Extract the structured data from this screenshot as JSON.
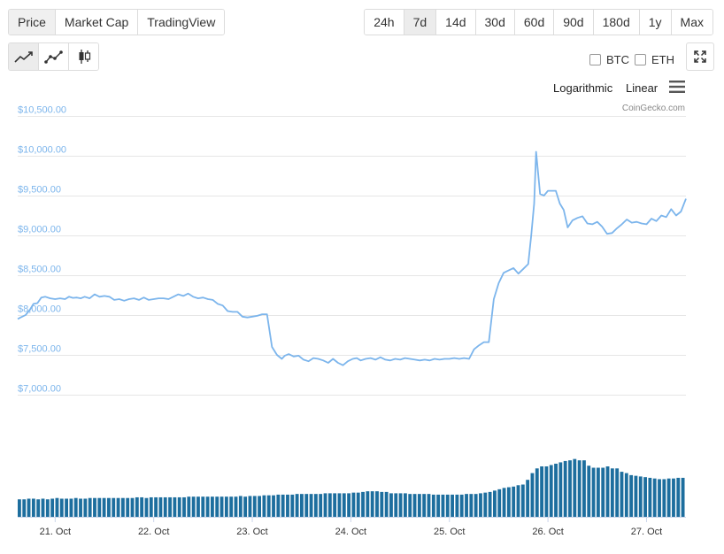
{
  "view_tabs": [
    {
      "label": "Price",
      "active": true
    },
    {
      "label": "Market Cap",
      "active": false
    },
    {
      "label": "TradingView",
      "active": false
    }
  ],
  "ranges": [
    {
      "label": "24h",
      "active": false
    },
    {
      "label": "7d",
      "active": true
    },
    {
      "label": "14d",
      "active": false
    },
    {
      "label": "30d",
      "active": false
    },
    {
      "label": "60d",
      "active": false
    },
    {
      "label": "90d",
      "active": false
    },
    {
      "label": "180d",
      "active": false
    },
    {
      "label": "1y",
      "active": false
    },
    {
      "label": "Max",
      "active": false
    }
  ],
  "chart_types": [
    {
      "icon": "line-chart-icon",
      "active": true
    },
    {
      "icon": "line-markers-chart-icon",
      "active": false
    },
    {
      "icon": "candlestick-chart-icon",
      "active": false
    }
  ],
  "compare": {
    "btc": "BTC",
    "eth": "ETH",
    "btc_checked": false,
    "eth_checked": false
  },
  "scale": {
    "log": "Logarithmic",
    "linear": "Linear"
  },
  "credit": "CoinGecko.com",
  "colors": {
    "line": "#7cb5ec",
    "volume": "#1d6e9e",
    "axis_text": "#7cb5ec",
    "grid": "#e6e6e6"
  },
  "chart_data": {
    "type": "line",
    "y_ticks": [
      "$10,500.00",
      "$10,000.00",
      "$9,500.00",
      "$9,000.00",
      "$8,500.00",
      "$8,000.00",
      "$7,500.00",
      "$7,000.00"
    ],
    "y_tick_values": [
      10500,
      10000,
      9500,
      9000,
      8500,
      8000,
      7500,
      7000
    ],
    "ylim": [
      7000,
      10500
    ],
    "x_ticks": [
      "21. Oct",
      "22. Oct",
      "23. Oct",
      "24. Oct",
      "25. Oct",
      "26. Oct",
      "27. Oct"
    ],
    "x_tick_days": [
      1,
      2,
      3,
      4,
      5,
      6,
      7
    ],
    "xlim_days": [
      0.62,
      7.4
    ],
    "x_unit": "Oct 20 + days",
    "price_series": {
      "days": [
        0.62,
        0.65,
        0.7,
        0.74,
        0.78,
        0.82,
        0.86,
        0.9,
        0.95,
        1.0,
        1.05,
        1.1,
        1.14,
        1.18,
        1.22,
        1.26,
        1.3,
        1.35,
        1.4,
        1.45,
        1.5,
        1.55,
        1.6,
        1.65,
        1.7,
        1.75,
        1.8,
        1.85,
        1.9,
        1.95,
        2.0,
        2.05,
        2.1,
        2.15,
        2.2,
        2.25,
        2.3,
        2.35,
        2.4,
        2.45,
        2.5,
        2.55,
        2.6,
        2.65,
        2.7,
        2.75,
        2.8,
        2.85,
        2.9,
        2.95,
        3.0,
        3.05,
        3.1,
        3.15,
        3.2,
        3.25,
        3.3,
        3.33,
        3.37,
        3.42,
        3.47,
        3.52,
        3.57,
        3.62,
        3.67,
        3.72,
        3.77,
        3.82,
        3.87,
        3.92,
        3.97,
        4.02,
        4.06,
        4.1,
        4.15,
        4.2,
        4.25,
        4.3,
        4.35,
        4.4,
        4.45,
        4.5,
        4.55,
        4.6,
        4.65,
        4.7,
        4.75,
        4.8,
        4.85,
        4.9,
        4.95,
        5.0,
        5.05,
        5.1,
        5.15,
        5.2,
        5.25,
        5.3,
        5.35,
        5.4,
        5.45,
        5.5,
        5.55,
        5.6,
        5.65,
        5.7,
        5.75,
        5.8,
        5.83,
        5.86,
        5.88,
        5.92,
        5.96,
        6.0,
        6.04,
        6.08,
        6.12,
        6.16,
        6.2,
        6.25,
        6.3,
        6.35,
        6.4,
        6.45,
        6.5,
        6.55,
        6.6,
        6.65,
        6.7,
        6.75,
        6.8,
        6.85,
        6.9,
        6.95,
        7.0,
        7.05,
        7.1,
        7.15,
        7.2,
        7.25,
        7.3,
        7.35,
        7.4
      ],
      "prices": [
        7950,
        7970,
        8000,
        8060,
        8140,
        8150,
        8220,
        8230,
        8210,
        8200,
        8210,
        8200,
        8230,
        8215,
        8220,
        8210,
        8230,
        8210,
        8260,
        8230,
        8240,
        8230,
        8190,
        8200,
        8180,
        8200,
        8210,
        8190,
        8220,
        8190,
        8200,
        8210,
        8210,
        8200,
        8230,
        8260,
        8240,
        8270,
        8230,
        8210,
        8220,
        8200,
        8190,
        8140,
        8120,
        8050,
        8040,
        8040,
        7980,
        7970,
        7980,
        7990,
        8010,
        8010,
        7600,
        7500,
        7450,
        7490,
        7510,
        7480,
        7490,
        7440,
        7420,
        7460,
        7450,
        7430,
        7400,
        7450,
        7400,
        7370,
        7420,
        7450,
        7460,
        7430,
        7450,
        7460,
        7440,
        7470,
        7440,
        7430,
        7450,
        7440,
        7460,
        7450,
        7440,
        7430,
        7440,
        7430,
        7450,
        7440,
        7450,
        7450,
        7460,
        7450,
        7460,
        7450,
        7570,
        7620,
        7660,
        7660,
        8200,
        8400,
        8530,
        8560,
        8590,
        8520,
        8580,
        8640,
        9000,
        9400,
        10050,
        9520,
        9500,
        9560,
        9560,
        9560,
        9400,
        9320,
        9100,
        9190,
        9220,
        9240,
        9150,
        9140,
        9170,
        9110,
        9020,
        9030,
        9090,
        9140,
        9200,
        9160,
        9170,
        9150,
        9140,
        9210,
        9180,
        9250,
        9230,
        9330,
        9250,
        9300,
        9460
      ]
    },
    "volume_bars": [
      0.26,
      0.26,
      0.27,
      0.27,
      0.26,
      0.27,
      0.26,
      0.27,
      0.28,
      0.27,
      0.27,
      0.27,
      0.28,
      0.27,
      0.27,
      0.28,
      0.28,
      0.28,
      0.28,
      0.28,
      0.28,
      0.28,
      0.28,
      0.28,
      0.28,
      0.29,
      0.29,
      0.28,
      0.29,
      0.29,
      0.29,
      0.29,
      0.29,
      0.29,
      0.29,
      0.29,
      0.3,
      0.3,
      0.3,
      0.3,
      0.3,
      0.3,
      0.3,
      0.3,
      0.3,
      0.3,
      0.3,
      0.31,
      0.3,
      0.31,
      0.31,
      0.31,
      0.32,
      0.32,
      0.32,
      0.33,
      0.33,
      0.33,
      0.33,
      0.34,
      0.34,
      0.34,
      0.34,
      0.34,
      0.34,
      0.35,
      0.35,
      0.35,
      0.35,
      0.35,
      0.35,
      0.36,
      0.36,
      0.37,
      0.38,
      0.38,
      0.38,
      0.37,
      0.37,
      0.35,
      0.35,
      0.35,
      0.35,
      0.34,
      0.34,
      0.34,
      0.34,
      0.34,
      0.33,
      0.33,
      0.33,
      0.33,
      0.33,
      0.33,
      0.33,
      0.34,
      0.34,
      0.34,
      0.35,
      0.36,
      0.37,
      0.39,
      0.41,
      0.43,
      0.44,
      0.45,
      0.47,
      0.48,
      0.55,
      0.65,
      0.72,
      0.75,
      0.75,
      0.77,
      0.79,
      0.81,
      0.83,
      0.84,
      0.86,
      0.84,
      0.84,
      0.76,
      0.73,
      0.73,
      0.73,
      0.75,
      0.72,
      0.72,
      0.67,
      0.65,
      0.62,
      0.61,
      0.6,
      0.59,
      0.58,
      0.57,
      0.56,
      0.56,
      0.57,
      0.57,
      0.58,
      0.58
    ],
    "grid": true
  }
}
